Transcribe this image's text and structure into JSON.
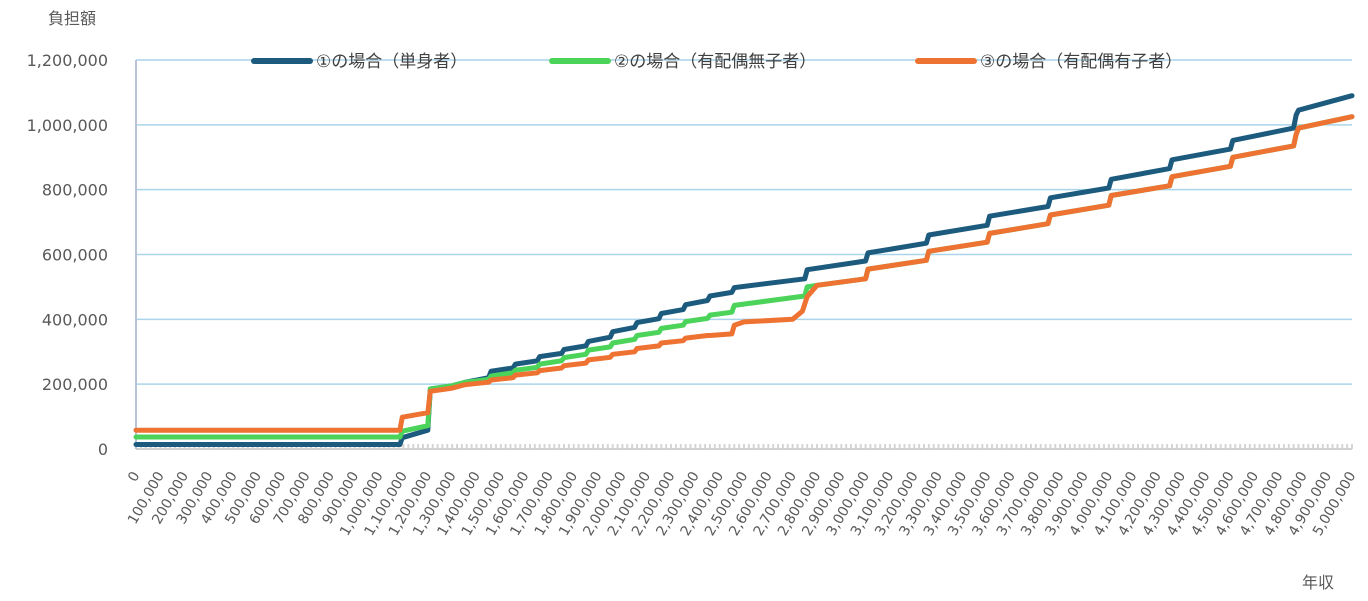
{
  "chart_data": {
    "type": "line",
    "ylabel": "負担額",
    "xlabel": "年収",
    "ylim": [
      0,
      1200000
    ],
    "yticks": [
      "0",
      "200,000",
      "400,000",
      "600,000",
      "800,000",
      "1,000,000",
      "1,200,000"
    ],
    "ytick_values": [
      0,
      200000,
      400000,
      600000,
      800000,
      1000000,
      1200000
    ],
    "xlim": [
      0,
      5000000
    ],
    "xtick_values": [
      0,
      100000,
      200000,
      300000,
      400000,
      500000,
      600000,
      700000,
      800000,
      900000,
      1000000,
      1100000,
      1200000,
      1300000,
      1400000,
      1500000,
      1600000,
      1700000,
      1800000,
      1900000,
      2000000,
      2100000,
      2200000,
      2300000,
      2400000,
      2500000,
      2600000,
      2700000,
      2800000,
      2900000,
      3000000,
      3100000,
      3200000,
      3300000,
      3400000,
      3500000,
      3600000,
      3700000,
      3800000,
      3900000,
      4000000,
      4100000,
      4200000,
      4300000,
      4400000,
      4500000,
      4600000,
      4700000,
      4800000,
      4900000,
      5000000
    ],
    "xticks": [
      "0",
      "100,000",
      "200,000",
      "300,000",
      "400,000",
      "500,000",
      "600,000",
      "700,000",
      "800,000",
      "900,000",
      "1,000,000",
      "1,100,000",
      "1,200,000",
      "1,300,000",
      "1,400,000",
      "1,500,000",
      "1,600,000",
      "1,700,000",
      "1,800,000",
      "1,900,000",
      "2,000,000",
      "2,100,000",
      "2,200,000",
      "2,300,000",
      "2,400,000",
      "2,500,000",
      "2,600,000",
      "2,700,000",
      "2,800,000",
      "2,900,000",
      "3,000,000",
      "3,100,000",
      "3,200,000",
      "3,300,000",
      "3,400,000",
      "3,500,000",
      "3,600,000",
      "3,700,000",
      "3,800,000",
      "3,900,000",
      "4,000,000",
      "4,100,000",
      "4,200,000",
      "4,300,000",
      "4,400,000",
      "4,500,000",
      "4,600,000",
      "4,700,000",
      "4,800,000",
      "4,900,000",
      "5,000,000"
    ],
    "grid": true,
    "legend_position": "top",
    "series": [
      {
        "name": "①の場合（単身者）",
        "color": "#1d5b7e",
        "points": [
          [
            0,
            14000
          ],
          [
            1085000,
            14000
          ],
          [
            1095000,
            35000
          ],
          [
            1200000,
            58000
          ],
          [
            1210000,
            185000
          ],
          [
            1300000,
            195000
          ],
          [
            1350000,
            205000
          ],
          [
            1450000,
            220000
          ],
          [
            1460000,
            240000
          ],
          [
            1550000,
            250000
          ],
          [
            1560000,
            262000
          ],
          [
            1650000,
            272000
          ],
          [
            1660000,
            285000
          ],
          [
            1750000,
            295000
          ],
          [
            1760000,
            307000
          ],
          [
            1850000,
            318000
          ],
          [
            1860000,
            332000
          ],
          [
            1950000,
            345000
          ],
          [
            1960000,
            362000
          ],
          [
            2050000,
            375000
          ],
          [
            2060000,
            390000
          ],
          [
            2150000,
            402000
          ],
          [
            2160000,
            418000
          ],
          [
            2250000,
            430000
          ],
          [
            2260000,
            445000
          ],
          [
            2350000,
            458000
          ],
          [
            2360000,
            472000
          ],
          [
            2450000,
            483000
          ],
          [
            2460000,
            498000
          ],
          [
            2750000,
            525000
          ],
          [
            2760000,
            553000
          ],
          [
            3000000,
            580000
          ],
          [
            3010000,
            605000
          ],
          [
            3250000,
            635000
          ],
          [
            3260000,
            660000
          ],
          [
            3500000,
            690000
          ],
          [
            3510000,
            718000
          ],
          [
            3750000,
            748000
          ],
          [
            3760000,
            775000
          ],
          [
            4000000,
            805000
          ],
          [
            4010000,
            832000
          ],
          [
            4250000,
            865000
          ],
          [
            4260000,
            892000
          ],
          [
            4500000,
            925000
          ],
          [
            4510000,
            952000
          ],
          [
            4760000,
            990000
          ],
          [
            4770000,
            1030000
          ],
          [
            4780000,
            1045000
          ],
          [
            5000000,
            1090000
          ]
        ]
      },
      {
        "name": "②の場合（有配偶無子者）",
        "color": "#4cd35a",
        "points": [
          [
            0,
            37000
          ],
          [
            1085000,
            37000
          ],
          [
            1095000,
            55000
          ],
          [
            1200000,
            72000
          ],
          [
            1210000,
            185000
          ],
          [
            1300000,
            195000
          ],
          [
            1350000,
            205000
          ],
          [
            1450000,
            215000
          ],
          [
            1460000,
            225000
          ],
          [
            1550000,
            235000
          ],
          [
            1560000,
            243000
          ],
          [
            1650000,
            252000
          ],
          [
            1660000,
            262000
          ],
          [
            1750000,
            272000
          ],
          [
            1760000,
            282000
          ],
          [
            1850000,
            292000
          ],
          [
            1860000,
            305000
          ],
          [
            1950000,
            315000
          ],
          [
            1960000,
            327000
          ],
          [
            2050000,
            338000
          ],
          [
            2060000,
            350000
          ],
          [
            2150000,
            360000
          ],
          [
            2160000,
            372000
          ],
          [
            2250000,
            382000
          ],
          [
            2260000,
            393000
          ],
          [
            2350000,
            403000
          ],
          [
            2360000,
            413000
          ],
          [
            2450000,
            422000
          ],
          [
            2460000,
            443000
          ],
          [
            2750000,
            472000
          ],
          [
            2760000,
            500000
          ],
          [
            2800000,
            505000
          ],
          [
            3000000,
            525000
          ],
          [
            3010000,
            555000
          ],
          [
            3250000,
            582000
          ],
          [
            3260000,
            610000
          ],
          [
            3500000,
            638000
          ],
          [
            3510000,
            665000
          ],
          [
            3750000,
            695000
          ],
          [
            3760000,
            722000
          ],
          [
            4000000,
            752000
          ],
          [
            4010000,
            782000
          ],
          [
            4250000,
            812000
          ],
          [
            4260000,
            840000
          ],
          [
            4500000,
            872000
          ],
          [
            4510000,
            900000
          ],
          [
            4760000,
            935000
          ],
          [
            4770000,
            970000
          ],
          [
            4780000,
            990000
          ],
          [
            5000000,
            1025000
          ]
        ]
      },
      {
        "name": "③の場合（有配偶有子者）",
        "color": "#ee7232",
        "points": [
          [
            0,
            58000
          ],
          [
            1085000,
            58000
          ],
          [
            1095000,
            98000
          ],
          [
            1200000,
            112000
          ],
          [
            1210000,
            178000
          ],
          [
            1300000,
            188000
          ],
          [
            1350000,
            198000
          ],
          [
            1450000,
            206000
          ],
          [
            1460000,
            213000
          ],
          [
            1550000,
            220000
          ],
          [
            1560000,
            228000
          ],
          [
            1650000,
            235000
          ],
          [
            1660000,
            242000
          ],
          [
            1750000,
            250000
          ],
          [
            1760000,
            257000
          ],
          [
            1850000,
            265000
          ],
          [
            1860000,
            275000
          ],
          [
            1950000,
            283000
          ],
          [
            1960000,
            292000
          ],
          [
            2050000,
            300000
          ],
          [
            2060000,
            310000
          ],
          [
            2150000,
            318000
          ],
          [
            2160000,
            327000
          ],
          [
            2250000,
            334000
          ],
          [
            2260000,
            342000
          ],
          [
            2350000,
            350000
          ],
          [
            2360000,
            350000
          ],
          [
            2450000,
            355000
          ],
          [
            2460000,
            382000
          ],
          [
            2500000,
            392000
          ],
          [
            2700000,
            400000
          ],
          [
            2740000,
            425000
          ],
          [
            2760000,
            470000
          ],
          [
            2800000,
            505000
          ],
          [
            3000000,
            525000
          ],
          [
            3010000,
            555000
          ],
          [
            3250000,
            582000
          ],
          [
            3260000,
            610000
          ],
          [
            3500000,
            638000
          ],
          [
            3510000,
            665000
          ],
          [
            3750000,
            695000
          ],
          [
            3760000,
            722000
          ],
          [
            4000000,
            752000
          ],
          [
            4010000,
            782000
          ],
          [
            4250000,
            812000
          ],
          [
            4260000,
            840000
          ],
          [
            4500000,
            872000
          ],
          [
            4510000,
            900000
          ],
          [
            4760000,
            935000
          ],
          [
            4770000,
            970000
          ],
          [
            4780000,
            990000
          ],
          [
            5000000,
            1025000
          ]
        ]
      }
    ]
  }
}
